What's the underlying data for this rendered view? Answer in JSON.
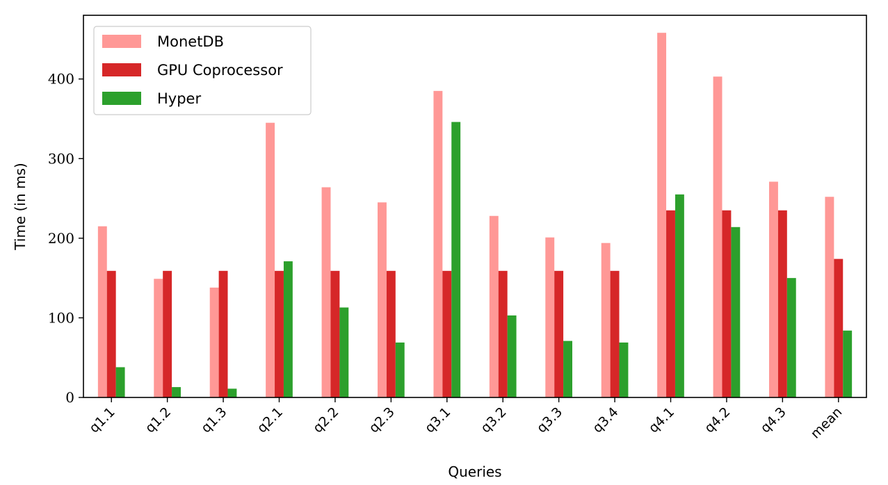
{
  "chart_data": {
    "type": "bar",
    "xlabel": "Queries",
    "ylabel": "Time (in ms)",
    "ylim": [
      0,
      480
    ],
    "yticks": [
      "0",
      "100",
      "200",
      "300",
      "400"
    ],
    "categories": [
      "q1.1",
      "q1.2",
      "q1.3",
      "q2.1",
      "q2.2",
      "q2.3",
      "q3.1",
      "q3.2",
      "q3.3",
      "q3.4",
      "q4.1",
      "q4.2",
      "q4.3",
      "mean"
    ],
    "series": [
      {
        "name": "MonetDB",
        "color": "#ff9896",
        "values": [
          215,
          149,
          138,
          345,
          264,
          245,
          385,
          228,
          201,
          194,
          458,
          403,
          271,
          252
        ]
      },
      {
        "name": "GPU Coprocessor",
        "color": "#d62728",
        "values": [
          159,
          159,
          159,
          159,
          159,
          159,
          159,
          159,
          159,
          159,
          235,
          235,
          235,
          174
        ]
      },
      {
        "name": "Hyper",
        "color": "#2ca02c",
        "values": [
          38,
          13,
          11,
          171,
          113,
          69,
          346,
          103,
          71,
          69,
          255,
          214,
          150,
          84
        ]
      }
    ],
    "legend_position": "top-left",
    "grid": false
  }
}
